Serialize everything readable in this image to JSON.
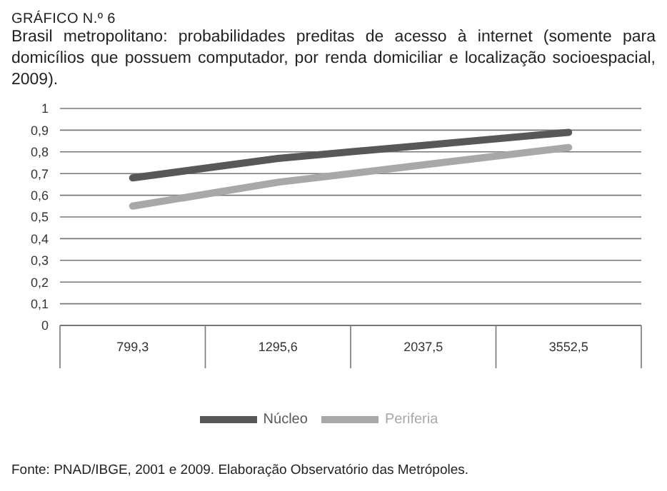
{
  "chart_data": {
    "type": "line",
    "title": "GRÁFICO N.º 6",
    "subtitle": "Brasil metropolitano: probabilidades preditas de acesso à internet (somente para domicílios que possuem computador, por renda domiciliar e localização socioespacial, 2009).",
    "categories": [
      "799,3",
      "1295,6",
      "2037,5",
      "3552,5"
    ],
    "series": [
      {
        "name": "Núcleo",
        "color": "#58585a",
        "values": [
          0.68,
          0.77,
          0.83,
          0.89
        ]
      },
      {
        "name": "Periferia",
        "color": "#a7a8aa",
        "values": [
          0.55,
          0.66,
          0.74,
          0.82
        ]
      }
    ],
    "ylim": [
      0,
      1
    ],
    "yticks": [
      {
        "value": 0,
        "label": "0"
      },
      {
        "value": 0.1,
        "label": "0,1"
      },
      {
        "value": 0.2,
        "label": "0,2"
      },
      {
        "value": 0.3,
        "label": "0,3"
      },
      {
        "value": 0.4,
        "label": "0,4"
      },
      {
        "value": 0.5,
        "label": "0,5"
      },
      {
        "value": 0.6,
        "label": "0,6"
      },
      {
        "value": 0.7,
        "label": "0,7"
      },
      {
        "value": 0.8,
        "label": "0,8"
      },
      {
        "value": 0.9,
        "label": "0,9"
      },
      {
        "value": 1,
        "label": "1"
      }
    ],
    "grid": "y",
    "legend": "bottom",
    "marker": "none",
    "line_style": "solid",
    "annotations": [
      "Fonte: PNAD/IBGE, 2001 e 2009. Elaboração Observatório das Metrópoles."
    ]
  }
}
